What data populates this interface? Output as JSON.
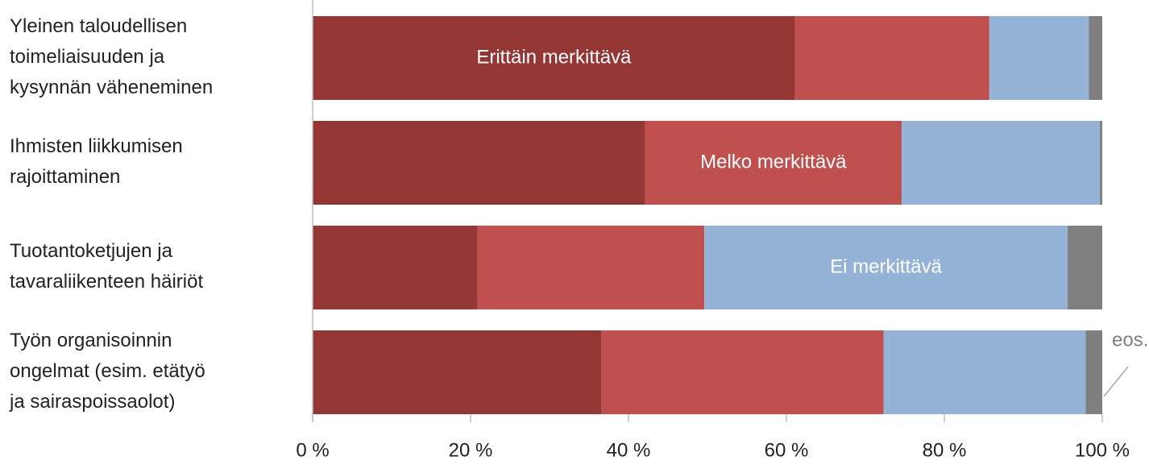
{
  "chart_data": {
    "type": "stacked-bar-horizontal",
    "categories": [
      "Yleinen taloudellisen\ntoimeliaisuuden ja\nkysynnän väheneminen",
      "Ihmisten liikkumisen\nrajoittaminen",
      "Tuotantoketjujen ja\ntavaraliikenteen häiriöt",
      "Työn organisoinnin\nongelmat (esim. etätyö\nja sairaspoissaolot)"
    ],
    "series": [
      {
        "name": "Erittäin merkittävä",
        "color": "#943634",
        "values": [
          61.1,
          42.1,
          20.9,
          36.6
        ]
      },
      {
        "name": "Melko merkittävä",
        "color": "#c0504d",
        "values": [
          24.6,
          32.5,
          28.7,
          35.7
        ]
      },
      {
        "name": "Ei merkittävä",
        "color": "#95b3d7",
        "values": [
          12.6,
          25.1,
          46.0,
          25.6
        ]
      },
      {
        "name": "eos.",
        "color": "#7f7f7f",
        "values": [
          1.7,
          0.3,
          4.4,
          2.1
        ]
      }
    ],
    "xlim": [
      0,
      100
    ],
    "xticks": [
      {
        "value": 0,
        "label": "0 %"
      },
      {
        "value": 20,
        "label": "20 %"
      },
      {
        "value": 40,
        "label": "40 %"
      },
      {
        "value": 60,
        "label": "60 %"
      },
      {
        "value": 80,
        "label": "80 %"
      },
      {
        "value": 100,
        "label": "100 %"
      }
    ]
  }
}
